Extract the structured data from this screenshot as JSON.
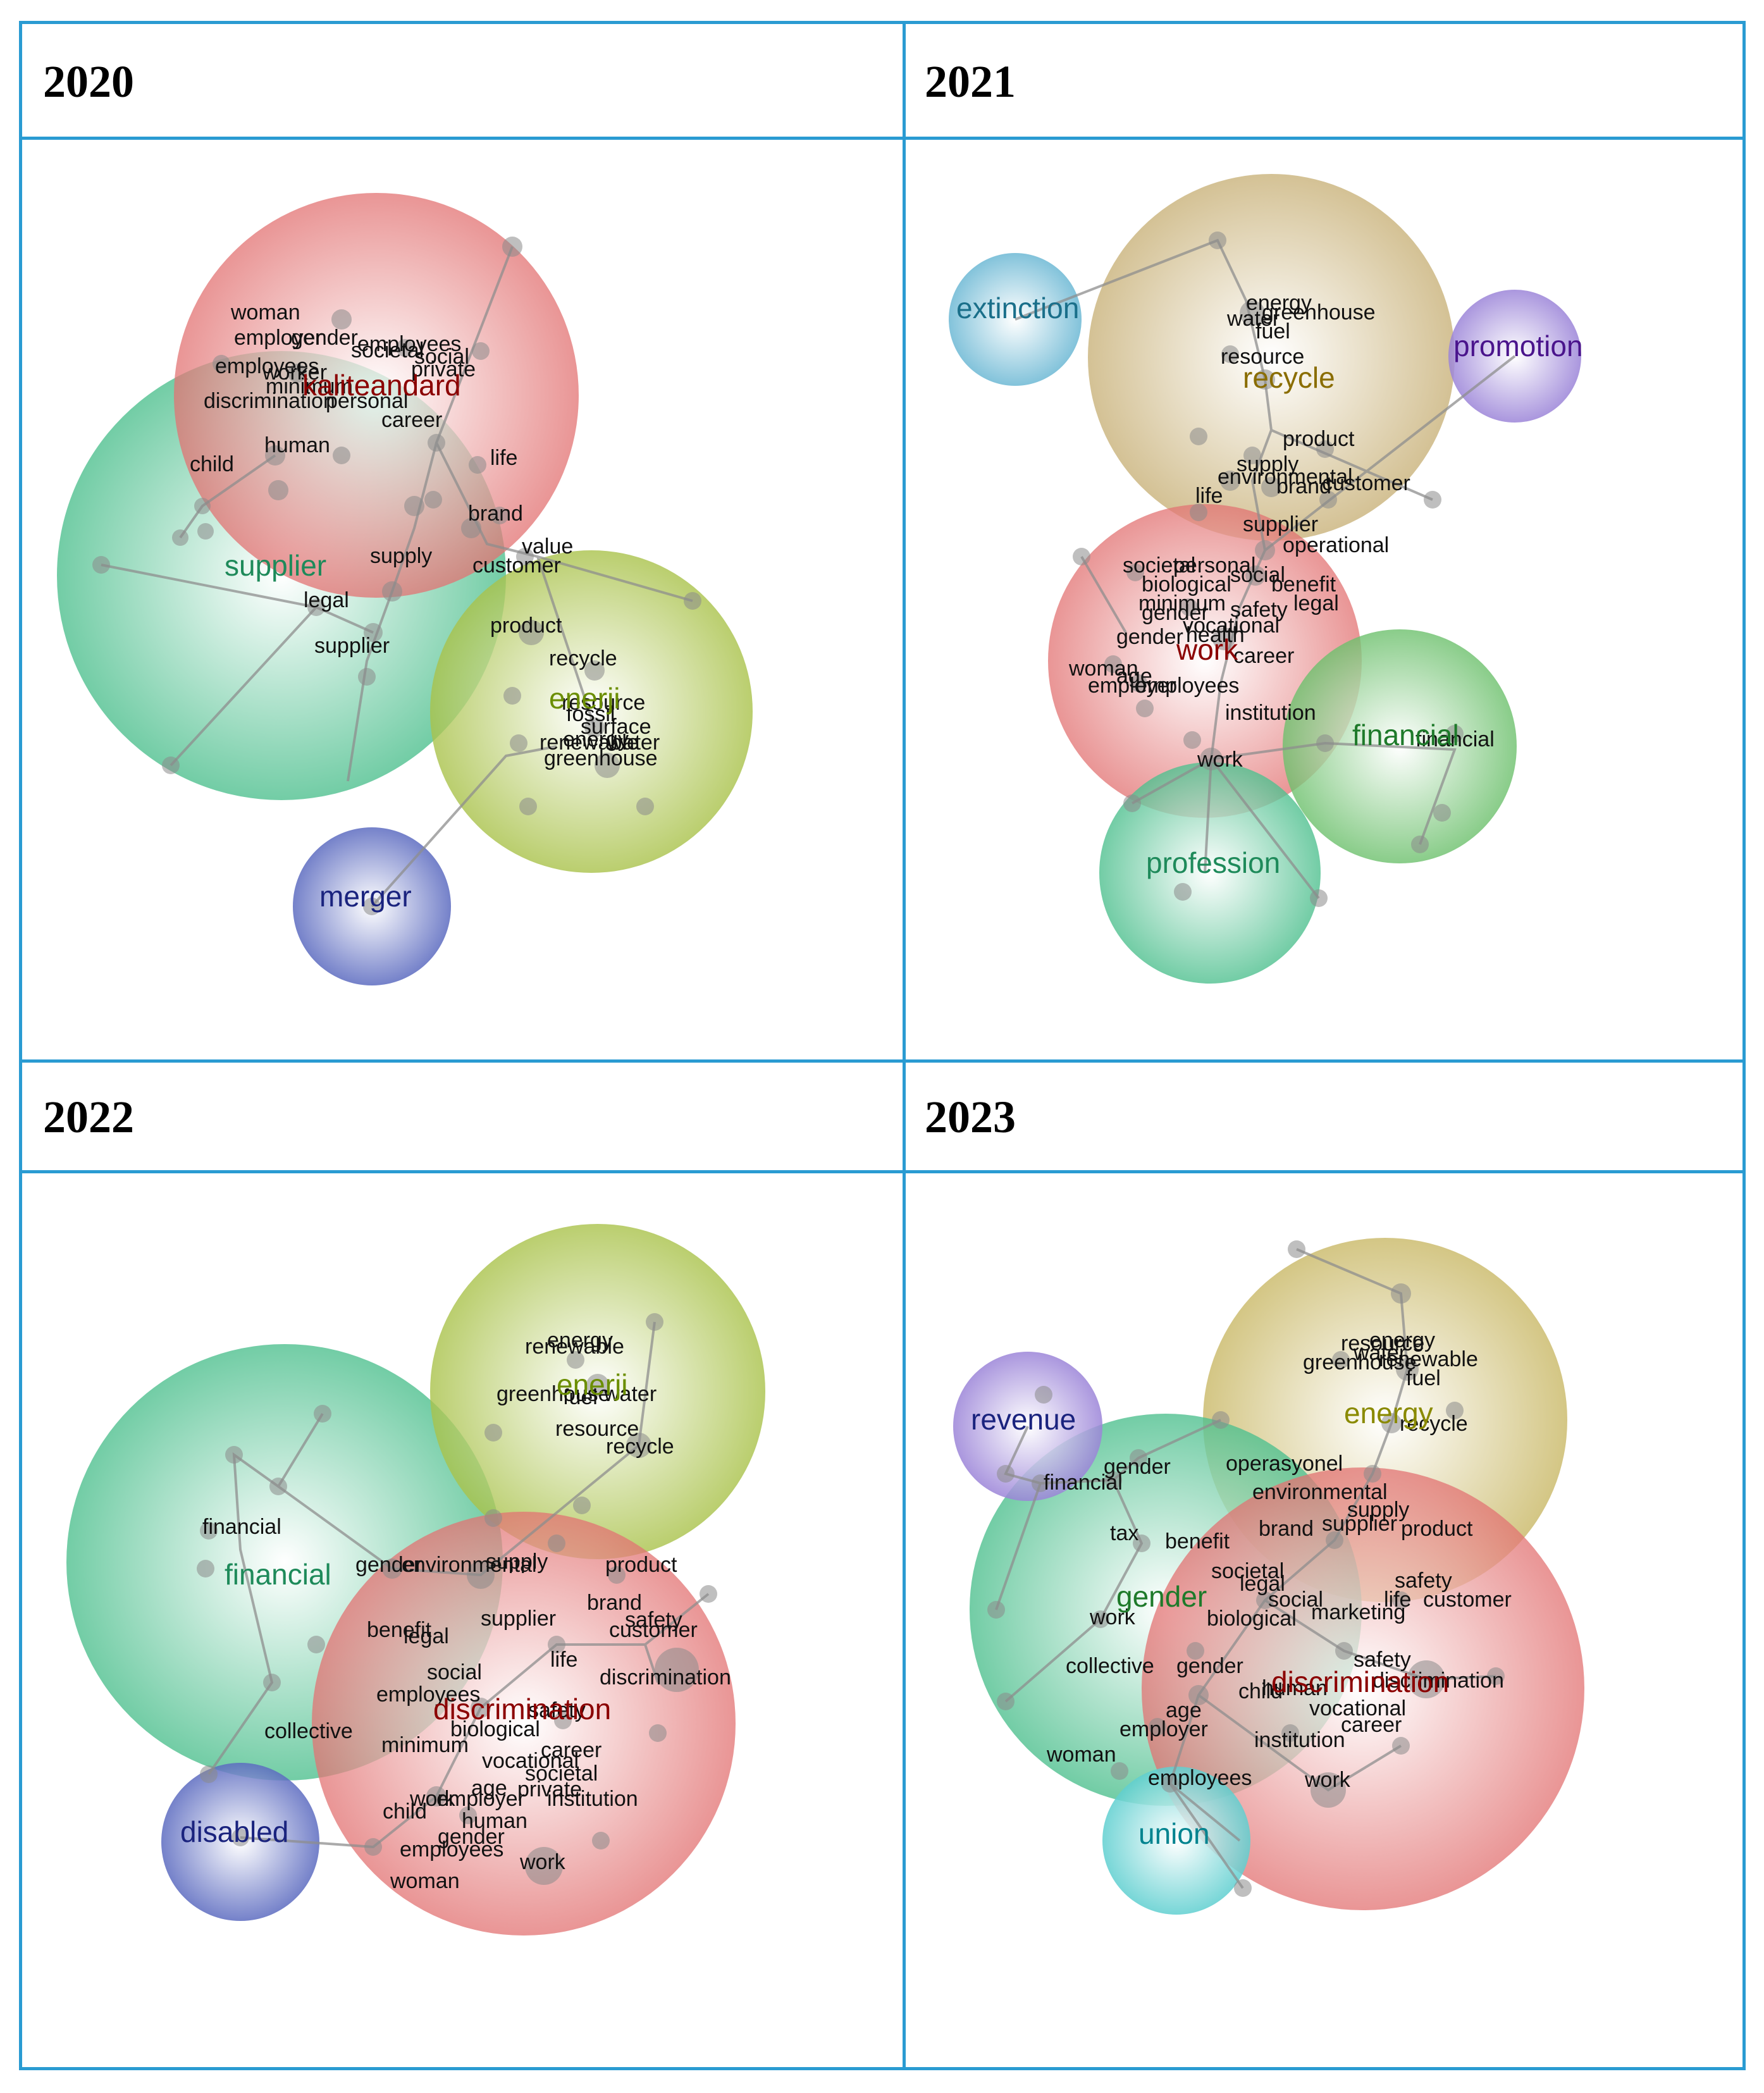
{
  "panels": [
    {
      "year": "2020",
      "clusters": [
        {
          "label": "kaliteandard",
          "color": "#8b0000",
          "fill": "#e27272",
          "icon": "cluster-bubble"
        },
        {
          "label": "supplier",
          "color": "#1e8a5a",
          "fill": "#4fc08f",
          "icon": "cluster-bubble"
        },
        {
          "label": "enerji",
          "color": "#6b8e00",
          "fill": "#a9c24a",
          "icon": "cluster-bubble"
        },
        {
          "label": "merger",
          "color": "#1a237e",
          "fill": "#5c6bc0",
          "icon": "cluster-bubble"
        }
      ],
      "terms": [
        "woman",
        "employer",
        "gender",
        "employees",
        "social",
        "societal",
        "private",
        "employees",
        "worker",
        "minimum",
        "discrimination",
        "personal",
        "career",
        "human",
        "child",
        "life",
        "brand",
        "value",
        "supply",
        "customer",
        "legal",
        "supplier",
        "product",
        "recycle",
        "resource",
        "fossil",
        "surface",
        "renewable",
        "energy",
        "water",
        "greenhouse"
      ]
    },
    {
      "year": "2021",
      "clusters": [
        {
          "label": "extinction",
          "color": "#1a6f8a",
          "fill": "#6cb8d4",
          "icon": "cluster-bubble"
        },
        {
          "label": "recycle",
          "color": "#8a6d00",
          "fill": "#c9b27a",
          "icon": "cluster-bubble"
        },
        {
          "label": "promotion",
          "color": "#4a148c",
          "fill": "#9b84d8",
          "icon": "cluster-bubble"
        },
        {
          "label": "work",
          "color": "#8b0000",
          "fill": "#e27272",
          "icon": "cluster-bubble"
        },
        {
          "label": "financial",
          "color": "#1e7a2a",
          "fill": "#6cc06c",
          "icon": "cluster-bubble"
        },
        {
          "label": "profession",
          "color": "#1e8a5a",
          "fill": "#4fc08f",
          "icon": "cluster-bubble"
        }
      ],
      "terms": [
        "energy",
        "greenhouse",
        "water",
        "fuel",
        "resource",
        "product",
        "supply",
        "environmental",
        "customer",
        "brand",
        "life",
        "supplier",
        "operational",
        "societal",
        "personal",
        "social",
        "biological",
        "benefit",
        "legal",
        "minimum",
        "gender",
        "safety",
        "vocational",
        "health",
        "gender",
        "career",
        "woman",
        "age",
        "employer",
        "employees",
        "institution",
        "financial",
        "work"
      ]
    },
    {
      "year": "2022",
      "clusters": [
        {
          "label": "enerji",
          "color": "#6b8e00",
          "fill": "#a9c24a",
          "icon": "cluster-bubble"
        },
        {
          "label": "financial",
          "color": "#1e8a5a",
          "fill": "#4fc08f",
          "icon": "cluster-bubble"
        },
        {
          "label": "discrimination",
          "color": "#8b0000",
          "fill": "#e27272",
          "icon": "cluster-bubble"
        },
        {
          "label": "disabled",
          "color": "#1a237e",
          "fill": "#5c6bc0",
          "icon": "cluster-bubble"
        }
      ],
      "terms": [
        "energy",
        "renewable",
        "greenhouse",
        "fuel",
        "water",
        "resource",
        "recycle",
        "financial",
        "gender",
        "environmental",
        "supply",
        "product",
        "brand",
        "safety",
        "customer",
        "benefit",
        "legal",
        "supplier",
        "life",
        "social",
        "employees",
        "discrimination",
        "safety",
        "collective",
        "biological",
        "minimum",
        "career",
        "vocational",
        "societal",
        "age",
        "private",
        "child",
        "work",
        "employer",
        "institution",
        "human",
        "gender",
        "employees",
        "work",
        "woman"
      ]
    },
    {
      "year": "2023",
      "clusters": [
        {
          "label": "energy",
          "color": "#8a8a00",
          "fill": "#c9b866",
          "icon": "cluster-bubble"
        },
        {
          "label": "revenue",
          "color": "#1a237e",
          "fill": "#7a6fd0",
          "icon": "cluster-bubble"
        },
        {
          "label": "gender",
          "color": "#1e7a2a",
          "fill": "#5cc06a",
          "icon": "cluster-bubble"
        },
        {
          "label": "discrimination",
          "color": "#8b0000",
          "fill": "#e27272",
          "icon": "cluster-bubble"
        },
        {
          "label": "union",
          "color": "#00838f",
          "fill": "#5fcfd0",
          "icon": "cluster-bubble"
        }
      ],
      "terms": [
        "resource",
        "energy",
        "greenhouse",
        "water",
        "renewable",
        "fuel",
        "recycle",
        "gender",
        "financial",
        "operasyonel",
        "environmental",
        "supply",
        "tax",
        "benefit",
        "brand",
        "supplier",
        "product",
        "societal",
        "legal",
        "social",
        "safety",
        "life",
        "customer",
        "work",
        "biological",
        "marketing",
        "collective",
        "gender",
        "safety",
        "discrimination",
        "child",
        "human",
        "age",
        "vocational",
        "employer",
        "career",
        "woman",
        "institution",
        "employees",
        "work"
      ]
    }
  ]
}
